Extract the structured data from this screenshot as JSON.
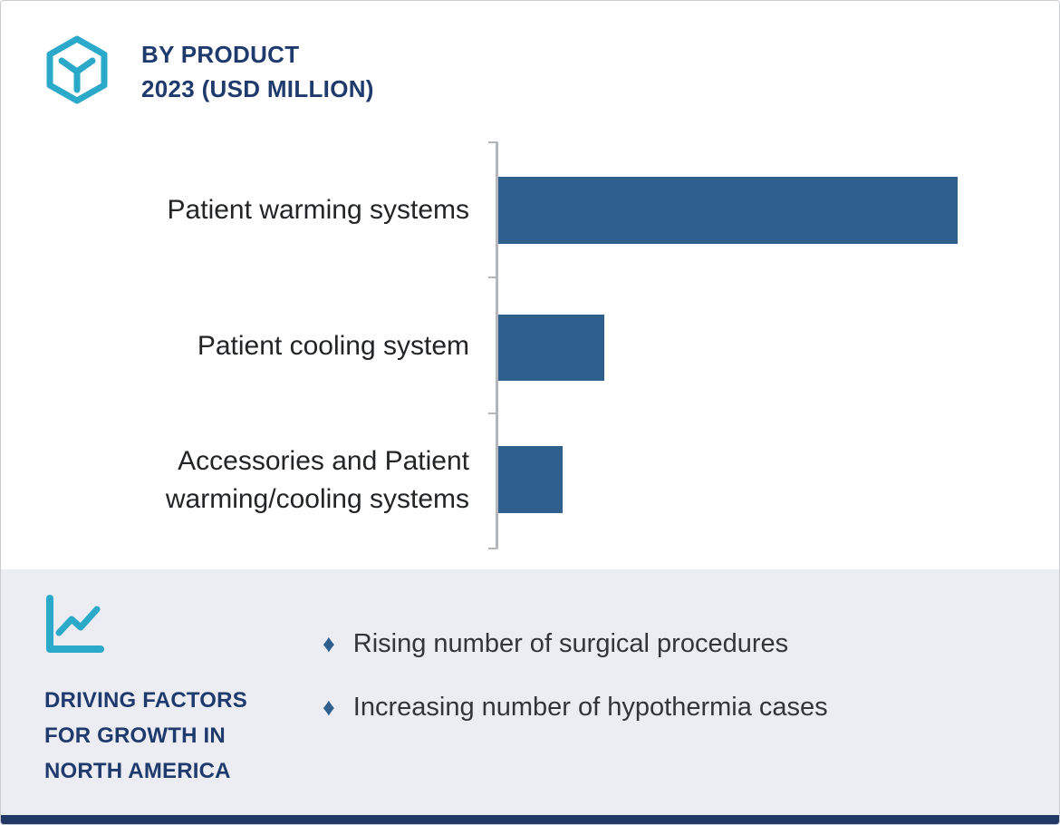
{
  "header": {
    "title_line1": "BY PRODUCT",
    "title_line2": "2023 (USD MILLION)"
  },
  "chart_data": {
    "type": "bar",
    "orientation": "horizontal",
    "title": "By Product 2023 (USD Million)",
    "categories": [
      "Patient warming systems",
      "Patient cooling system",
      "Accessories and Patient warming/cooling systems"
    ],
    "values": [
      100,
      23,
      14
    ],
    "values_note": "No numeric axis labels shown; values are relative bar lengths as % of the longest bar",
    "xlabel": "",
    "ylabel": "",
    "legend": "none",
    "grid": "off",
    "bar_color": "#2e5f8d",
    "axis_style": "left vertical baseline with small tick marks, no value axis"
  },
  "bottom": {
    "heading": "DRIVING FACTORS\nFOR GROWTH IN\nNORTH AMERICA",
    "bullet_marker": "♦",
    "bullets": [
      "Rising number of surgical procedures",
      "Increasing number of hypothermia cases"
    ]
  },
  "colors": {
    "accent_navy": "#1f3a6d",
    "icon_teal": "#2ba9c9",
    "bar_blue": "#2e5f8d",
    "panel_background": "#ecedf3",
    "footer_strip": "#203864"
  }
}
